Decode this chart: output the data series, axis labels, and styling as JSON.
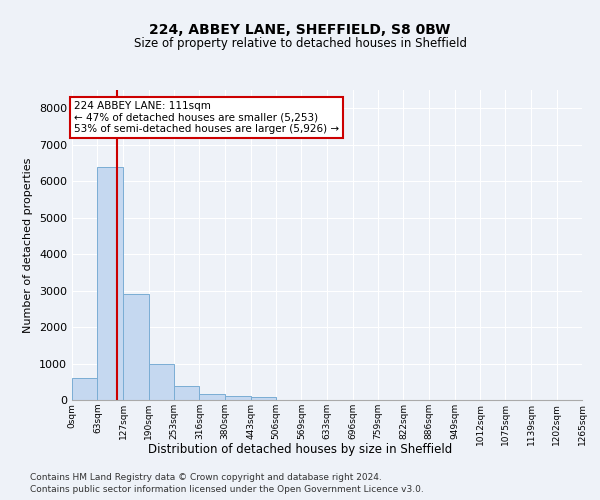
{
  "title1": "224, ABBEY LANE, SHEFFIELD, S8 0BW",
  "title2": "Size of property relative to detached houses in Sheffield",
  "xlabel": "Distribution of detached houses by size in Sheffield",
  "ylabel": "Number of detached properties",
  "bar_color": "#c5d8f0",
  "bar_edge_color": "#7aadd4",
  "vline_color": "#cc0000",
  "vline_x": 111,
  "annotation_text": "224 ABBEY LANE: 111sqm\n← 47% of detached houses are smaller (5,253)\n53% of semi-detached houses are larger (5,926) →",
  "annotation_box_color": "#ffffff",
  "annotation_box_edge": "#cc0000",
  "bin_edges": [
    0,
    63,
    127,
    190,
    253,
    316,
    380,
    443,
    506,
    569,
    633,
    696,
    759,
    822,
    886,
    949,
    1012,
    1075,
    1139,
    1202,
    1265
  ],
  "bin_counts": [
    610,
    6380,
    2900,
    990,
    375,
    165,
    110,
    80,
    0,
    0,
    0,
    0,
    0,
    0,
    0,
    0,
    0,
    0,
    0,
    0
  ],
  "ylim": [
    0,
    8500
  ],
  "yticks": [
    0,
    1000,
    2000,
    3000,
    4000,
    5000,
    6000,
    7000,
    8000
  ],
  "background_color": "#eef2f8",
  "grid_color": "#ffffff",
  "footer1": "Contains HM Land Registry data © Crown copyright and database right 2024.",
  "footer2": "Contains public sector information licensed under the Open Government Licence v3.0."
}
